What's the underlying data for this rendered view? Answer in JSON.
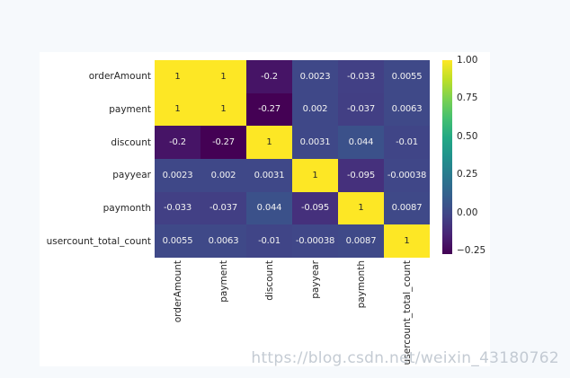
{
  "page": {
    "background": "#f6f9fc",
    "figure_background": "#ffffff"
  },
  "watermark": {
    "text": "https://blog.csdn.net/weixin_43180762",
    "color": "rgba(186,194,203,0.85)"
  },
  "chart_data": {
    "type": "heatmap",
    "title": "",
    "categories": [
      "orderAmount",
      "payment",
      "discount",
      "payyear",
      "paymonth",
      "usercount_total_count"
    ],
    "matrix": [
      [
        1,
        1,
        -0.2,
        0.0023,
        -0.033,
        0.0055
      ],
      [
        1,
        1,
        -0.27,
        0.002,
        -0.037,
        0.0063
      ],
      [
        -0.2,
        -0.27,
        1,
        0.0031,
        0.044,
        -0.01
      ],
      [
        0.0023,
        0.002,
        0.0031,
        1,
        -0.095,
        -0.00038
      ],
      [
        -0.033,
        -0.037,
        0.044,
        -0.095,
        1,
        0.0087
      ],
      [
        0.0055,
        0.0063,
        -0.01,
        -0.00038,
        0.0087,
        1
      ]
    ],
    "cell_labels": [
      [
        "1",
        "1",
        "-0.2",
        "0.0023",
        "-0.033",
        "0.0055"
      ],
      [
        "1",
        "1",
        "-0.27",
        "0.002",
        "-0.037",
        "0.0063"
      ],
      [
        "-0.2",
        "-0.27",
        "1",
        "0.0031",
        "0.044",
        "-0.01"
      ],
      [
        "0.0023",
        "0.002",
        "0.0031",
        "1",
        "-0.095",
        "-0.00038"
      ],
      [
        "-0.033",
        "-0.037",
        "0.044",
        "-0.095",
        "1",
        "0.0087"
      ],
      [
        "0.0055",
        "0.0063",
        "-0.01",
        "-0.00038",
        "0.0087",
        "1"
      ]
    ],
    "vmin": -0.27,
    "vmax": 1.0,
    "colormap": "viridis",
    "colormap_stops": [
      "#440154",
      "#482475",
      "#414487",
      "#355f8d",
      "#2a788e",
      "#21918c",
      "#22a884",
      "#44bf70",
      "#7ad151",
      "#bddf26",
      "#fde725"
    ],
    "colorbar_ticks": [
      {
        "value": 1.0,
        "label": "1.00"
      },
      {
        "value": 0.75,
        "label": "0.75"
      },
      {
        "value": 0.5,
        "label": "0.50"
      },
      {
        "value": 0.25,
        "label": "0.25"
      },
      {
        "value": 0.0,
        "label": "0.00"
      },
      {
        "value": -0.25,
        "label": "−0.25"
      }
    ],
    "legend_position": "right",
    "grid": false,
    "annotation_color_on_dark": "#f2f2f2",
    "annotation_color_on_light": "#262626",
    "axis_label_color": "#262626"
  }
}
